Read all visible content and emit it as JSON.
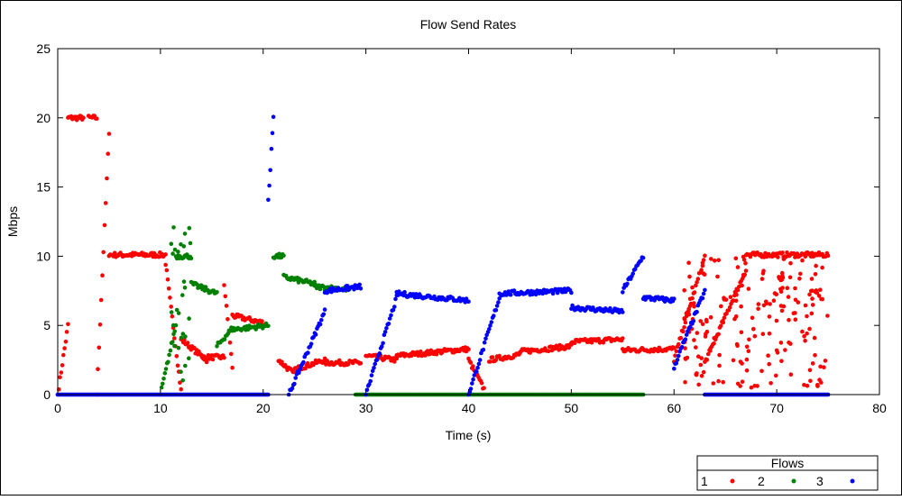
{
  "chart_data": {
    "type": "scatter",
    "title": "Flow Send Rates",
    "xlabel": "Time (s)",
    "ylabel": "Mbps",
    "xlim": [
      0,
      80
    ],
    "ylim": [
      0,
      25
    ],
    "xticks": [
      0,
      10,
      20,
      30,
      40,
      50,
      60,
      70,
      80
    ],
    "yticks": [
      0,
      5,
      10,
      15,
      20,
      25
    ],
    "xtick_labels": [
      "0",
      "10",
      "20",
      "30",
      "40",
      "50",
      "60",
      "70",
      "80"
    ],
    "ytick_labels": [
      "0",
      "5",
      "10",
      "15",
      "20",
      "25"
    ],
    "grid": false,
    "legend": {
      "title": "Flows",
      "placement": "bottom-right-outside"
    },
    "series": [
      {
        "name": "1",
        "color": "#ff0000",
        "segments": [
          {
            "t": [
              0,
              1
            ],
            "y": [
              0,
              5
            ]
          },
          {
            "t": [
              1,
              2.5
            ],
            "y": [
              20,
              20
            ]
          },
          {
            "t": [
              3,
              3.8
            ],
            "y": [
              20,
              20
            ]
          },
          {
            "t": [
              3.8,
              5
            ],
            "y": [
              0,
              19
            ]
          },
          {
            "t": [
              5,
              10.5
            ],
            "y": [
              10.1,
              10.1
            ]
          },
          {
            "t": [
              10.5,
              12
            ],
            "y": [
              9.5,
              0.3
            ]
          },
          {
            "t": [
              12,
              14.5
            ],
            "y": [
              4,
              2.5
            ]
          },
          {
            "t": [
              14,
              16.2
            ],
            "y": [
              2.7,
              2.7
            ]
          },
          {
            "t": [
              16.2,
              17
            ],
            "y": [
              8,
              2
            ]
          },
          {
            "t": [
              17,
              20
            ],
            "y": [
              5.7,
              5.2
            ]
          },
          {
            "t": [
              21.5,
              23
            ],
            "y": [
              2.5,
              1.5
            ]
          },
          {
            "t": [
              23,
              26
            ],
            "y": [
              1.8,
              2.5
            ]
          },
          {
            "t": [
              26,
              29.5
            ],
            "y": [
              2.3,
              2.3
            ]
          },
          {
            "t": [
              30,
              33
            ],
            "y": [
              2.8,
              2.5
            ]
          },
          {
            "t": [
              33,
              40
            ],
            "y": [
              2.8,
              3.3
            ]
          },
          {
            "t": [
              40,
              41.5
            ],
            "y": [
              2.5,
              0.4
            ]
          },
          {
            "t": [
              42,
              45
            ],
            "y": [
              2.5,
              2.9
            ]
          },
          {
            "t": [
              45,
              50
            ],
            "y": [
              3.1,
              3.5
            ]
          },
          {
            "t": [
              50,
              55
            ],
            "y": [
              3.8,
              4
            ]
          },
          {
            "t": [
              55,
              60
            ],
            "y": [
              3.2,
              3.3
            ]
          },
          {
            "t": [
              60,
              63
            ],
            "y": [
              2.5,
              10
            ]
          },
          {
            "t": [
              63,
              67
            ],
            "y": [
              2.3,
              9
            ]
          },
          {
            "t": [
              67,
              72
            ],
            "y": [
              10.1,
              10.1
            ]
          },
          {
            "t": [
              72,
              75
            ],
            "y": [
              10.1,
              10.1
            ]
          }
        ],
        "scatter_bands": [
          {
            "t": [
              61,
              75
            ],
            "y": [
              0.5,
              10.1
            ]
          }
        ]
      },
      {
        "name": "2",
        "color": "#008000",
        "segments": [
          {
            "t": [
              10,
              11.5
            ],
            "y": [
              0,
              5
            ]
          },
          {
            "t": [
              11.5,
              13
            ],
            "y": [
              10,
              10
            ]
          },
          {
            "t": [
              13,
              15.5
            ],
            "y": [
              8,
              7.3
            ]
          },
          {
            "t": [
              15.5,
              17
            ],
            "y": [
              3.5,
              4.8
            ]
          },
          {
            "t": [
              17,
              20.5
            ],
            "y": [
              4.7,
              5
            ]
          },
          {
            "t": [
              21,
              22
            ],
            "y": [
              10,
              10
            ]
          },
          {
            "t": [
              22,
              25
            ],
            "y": [
              8.5,
              8
            ]
          },
          {
            "t": [
              25,
              28.5
            ],
            "y": [
              7.8,
              7.6
            ]
          },
          {
            "t": [
              29,
              57
            ],
            "y": [
              0,
              0
            ]
          }
        ],
        "scatter_bands": [
          {
            "t": [
              11,
              13
            ],
            "y": [
              1,
              12.5
            ]
          }
        ]
      },
      {
        "name": "3",
        "color": "#0000ff",
        "segments": [
          {
            "t": [
              0,
              20.5
            ],
            "y": [
              0,
              0
            ]
          },
          {
            "t": [
              20.5,
              21
            ],
            "y": [
              14,
              20
            ]
          },
          {
            "t": [
              22.5,
              26
            ],
            "y": [
              0,
              6
            ]
          },
          {
            "t": [
              26,
              29.5
            ],
            "y": [
              7.5,
              7.8
            ]
          },
          {
            "t": [
              30,
              33
            ],
            "y": [
              0,
              7
            ]
          },
          {
            "t": [
              33,
              40
            ],
            "y": [
              7.3,
              6.8
            ]
          },
          {
            "t": [
              40,
              43
            ],
            "y": [
              0,
              7
            ]
          },
          {
            "t": [
              43,
              50
            ],
            "y": [
              7.3,
              7.5
            ]
          },
          {
            "t": [
              50,
              55
            ],
            "y": [
              6.3,
              6
            ]
          },
          {
            "t": [
              55,
              57
            ],
            "y": [
              7.5,
              10
            ]
          },
          {
            "t": [
              57,
              60
            ],
            "y": [
              7,
              6.8
            ]
          },
          {
            "t": [
              60,
              63
            ],
            "y": [
              2,
              7.5
            ]
          },
          {
            "t": [
              63,
              75
            ],
            "y": [
              0,
              0
            ]
          }
        ],
        "scatter_bands": []
      }
    ]
  }
}
